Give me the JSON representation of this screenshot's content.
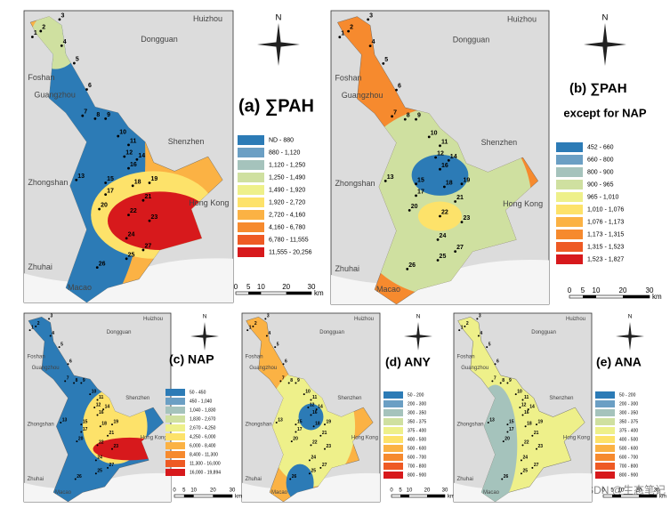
{
  "compass_label": "N",
  "scale": {
    "ticks": [
      "0",
      "5",
      "10",
      "20",
      "30"
    ],
    "unit": "km"
  },
  "places": [
    "Huizhou",
    "Dongguan",
    "Foshan",
    "Guangzhou",
    "Shenzhen",
    "Zhongshan",
    "Hong Kong",
    "Zhuhai",
    "Macao"
  ],
  "sites": [
    "1",
    "2",
    "3",
    "4",
    "5",
    "6",
    "7",
    "8",
    "9",
    "10",
    "11",
    "12",
    "13",
    "14",
    "15",
    "16",
    "17",
    "18",
    "19",
    "20",
    "21",
    "22",
    "23",
    "24",
    "25",
    "26",
    "27"
  ],
  "panels": [
    {
      "title": "(a) ∑PAH",
      "legend": [
        {
          "label": "ND - 880",
          "color": "#2c7bb6"
        },
        {
          "label": "880 - 1,120",
          "color": "#6b9fc4"
        },
        {
          "label": "1,120 - 1,250",
          "color": "#a5c3bc"
        },
        {
          "label": "1,250 - 1,490",
          "color": "#cfe0a0"
        },
        {
          "label": "1,490 - 1,920",
          "color": "#eef08a"
        },
        {
          "label": "1,920 - 2,720",
          "color": "#fde26a"
        },
        {
          "label": "2,720 - 4,160",
          "color": "#fbb244"
        },
        {
          "label": "4,160 - 6,780",
          "color": "#f68a2e"
        },
        {
          "label": "6,780 - 11,555",
          "color": "#ee5a24"
        },
        {
          "label": "11,555 - 20,256",
          "color": "#d7191c"
        }
      ]
    },
    {
      "title": "(b) ∑PAH",
      "subtitle": "except for NAP",
      "legend": [
        {
          "label": "452 - 660",
          "color": "#2c7bb6"
        },
        {
          "label": "660 - 800",
          "color": "#6b9fc4"
        },
        {
          "label": "800 - 900",
          "color": "#a5c3bc"
        },
        {
          "label": "900 - 965",
          "color": "#cfe0a0"
        },
        {
          "label": "965 - 1,010",
          "color": "#eef08a"
        },
        {
          "label": "1,010 - 1,076",
          "color": "#fde26a"
        },
        {
          "label": "1,076 - 1,173",
          "color": "#fbb244"
        },
        {
          "label": "1,173 - 1,315",
          "color": "#f68a2e"
        },
        {
          "label": "1,315 - 1,523",
          "color": "#ee5a24"
        },
        {
          "label": "1,523 - 1,827",
          "color": "#d7191c"
        }
      ]
    },
    {
      "title": "(c) NAP",
      "legend": [
        {
          "label": "50 - 450",
          "color": "#2c7bb6"
        },
        {
          "label": "450 - 1,040",
          "color": "#6b9fc4"
        },
        {
          "label": "1,040 - 1,830",
          "color": "#a5c3bc"
        },
        {
          "label": "1,830 - 2,670",
          "color": "#cfe0a0"
        },
        {
          "label": "2,670 - 4,250",
          "color": "#eef08a"
        },
        {
          "label": "4,250 - 6,000",
          "color": "#fde26a"
        },
        {
          "label": "6,000 - 8,400",
          "color": "#fbb244"
        },
        {
          "label": "8,400 - 11,300",
          "color": "#f68a2e"
        },
        {
          "label": "11,300 - 16,000",
          "color": "#ee5a24"
        },
        {
          "label": "16,000 - 19,894",
          "color": "#d7191c"
        }
      ]
    },
    {
      "title": "(d) ANY",
      "legend": [
        {
          "label": "50 - 200",
          "color": "#2c7bb6"
        },
        {
          "label": "200 - 300",
          "color": "#6b9fc4"
        },
        {
          "label": "300 - 350",
          "color": "#a5c3bc"
        },
        {
          "label": "350 - 375",
          "color": "#cfe0a0"
        },
        {
          "label": "375 - 400",
          "color": "#eef08a"
        },
        {
          "label": "400 - 500",
          "color": "#fde26a"
        },
        {
          "label": "500 - 600",
          "color": "#fbb244"
        },
        {
          "label": "600 - 700",
          "color": "#f68a2e"
        },
        {
          "label": "700 - 800",
          "color": "#ee5a24"
        },
        {
          "label": "800 - 900",
          "color": "#d7191c"
        }
      ]
    },
    {
      "title": "(e) ANA",
      "legend": [
        {
          "label": "50 - 200",
          "color": "#2c7bb6"
        },
        {
          "label": "200 - 300",
          "color": "#6b9fc4"
        },
        {
          "label": "300 - 350",
          "color": "#a5c3bc"
        },
        {
          "label": "350 - 375",
          "color": "#cfe0a0"
        },
        {
          "label": "375 - 400",
          "color": "#eef08a"
        },
        {
          "label": "400 - 500",
          "color": "#fde26a"
        },
        {
          "label": "500 - 600",
          "color": "#fbb244"
        },
        {
          "label": "600 - 700",
          "color": "#f68a2e"
        },
        {
          "label": "700 - 800",
          "color": "#ee5a24"
        },
        {
          "label": "800 - 900",
          "color": "#d7191c"
        }
      ]
    }
  ],
  "watermark": "CSDN @生态笔记"
}
